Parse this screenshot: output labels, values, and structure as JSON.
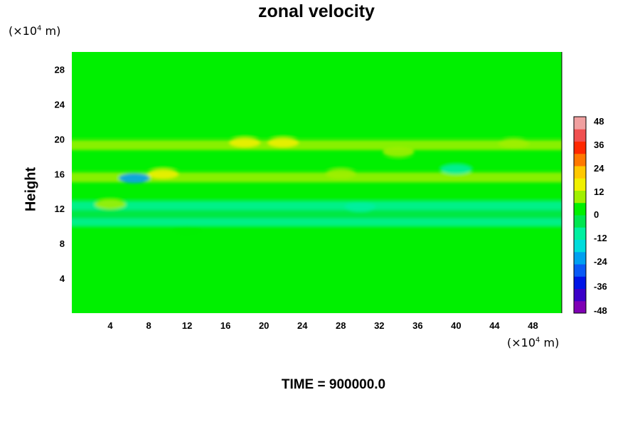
{
  "chart_data": {
    "type": "heatmap",
    "title": "zonal velocity",
    "ylabel": "Height",
    "xlabel": "",
    "x_unit": "(×10",
    "x_unit_exp": "4",
    "x_unit_tail": " m)",
    "y_unit": "(×10",
    "y_unit_exp": "4",
    "y_unit_tail": " m)",
    "x_ticks": [
      "4",
      "8",
      "12",
      "16",
      "20",
      "24",
      "28",
      "32",
      "36",
      "40",
      "44",
      "48"
    ],
    "y_ticks": [
      "4",
      "8",
      "12",
      "16",
      "20",
      "24",
      "28"
    ],
    "xlim": [
      0,
      51
    ],
    "ylim": [
      0,
      30
    ],
    "colorbar": {
      "ticks": [
        "48",
        "36",
        "24",
        "12",
        "0",
        "-12",
        "-24",
        "-36",
        "-48"
      ],
      "range": [
        -48,
        48
      ],
      "colors": [
        "#7f00b4",
        "#3c00c8",
        "#0014e6",
        "#0a5af5",
        "#00a0f0",
        "#00dcdc",
        "#00f0a0",
        "#00e650",
        "#00f000",
        "#a0f000",
        "#f0f000",
        "#ffc800",
        "#ff7800",
        "#ff2800",
        "#f05050",
        "#f0a0a0"
      ]
    },
    "field": {
      "background": 0,
      "bands": [
        {
          "y": 19.3,
          "value": 7
        },
        {
          "y": 17.2,
          "value": 3
        },
        {
          "y": 15.6,
          "value": 7
        },
        {
          "y": 13.6,
          "value": 5
        },
        {
          "y": 12.3,
          "value": -9
        },
        {
          "y": 11.3,
          "value": -6
        },
        {
          "y": 10.3,
          "value": -9
        },
        {
          "y": 9.5,
          "value": 3
        },
        {
          "y": 20.8,
          "value": 2
        }
      ],
      "features": [
        {
          "x": 18,
          "y": 19.6,
          "value": 12
        },
        {
          "x": 22,
          "y": 19.6,
          "value": 12
        },
        {
          "x": 6.5,
          "y": 15.5,
          "value": -22
        },
        {
          "x": 9.5,
          "y": 16.0,
          "value": 14
        },
        {
          "x": 28,
          "y": 16.0,
          "value": 10
        },
        {
          "x": 34,
          "y": 18.5,
          "value": 9
        },
        {
          "x": 46,
          "y": 19.5,
          "value": 8
        },
        {
          "x": 4.0,
          "y": 12.5,
          "value": 6
        },
        {
          "x": 12,
          "y": 9.5,
          "value": 5
        },
        {
          "x": 30,
          "y": 12.2,
          "value": -12
        },
        {
          "x": 40,
          "y": 16.5,
          "value": -7
        }
      ]
    }
  },
  "footer": {
    "time_label": "TIME = 900000.0"
  }
}
